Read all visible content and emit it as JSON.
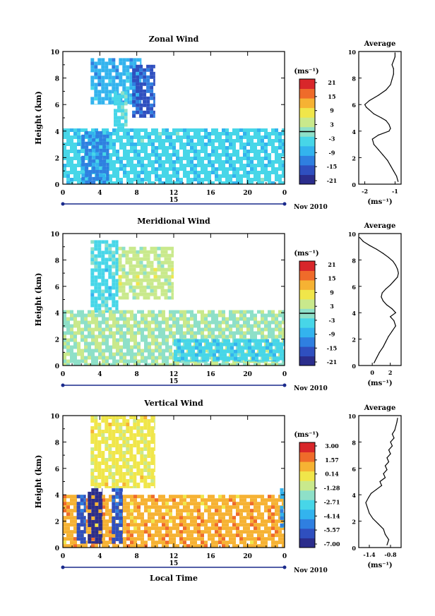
{
  "xaxis": {
    "ticks": [
      "0",
      "4",
      "8",
      "12",
      "16",
      "20",
      "0"
    ],
    "date_day": "15",
    "date_month_year": "Nov 2010",
    "xlabel": "Local Time"
  },
  "panels": [
    {
      "title": "Zonal Wind",
      "ylabel": "Height (km)",
      "yticks": [
        "0",
        "2",
        "4",
        "6",
        "8",
        "10"
      ],
      "colorbar": {
        "unit": "(ms⁻¹)",
        "labels": [
          "21",
          "15",
          "9",
          "3",
          "-3",
          "-9",
          "-15",
          "-21"
        ]
      },
      "avg_title": "Average",
      "avg_unit": "(ms⁻¹)"
    },
    {
      "title": "Meridional Wind",
      "ylabel": "Height (km)",
      "yticks": [
        "0",
        "2",
        "4",
        "6",
        "8",
        "10"
      ],
      "colorbar": {
        "unit": "(ms⁻¹)",
        "labels": [
          "21",
          "15",
          "9",
          "3",
          "-3",
          "-9",
          "-15",
          "-21"
        ]
      },
      "avg_title": "Average",
      "avg_unit": "(ms⁻¹)"
    },
    {
      "title": "Vertical Wind",
      "ylabel": "Height (km)",
      "yticks": [
        "0",
        "2",
        "4",
        "6",
        "8",
        "10"
      ],
      "colorbar": {
        "unit": "(ms⁻¹)",
        "labels": [
          "3.00",
          "1.57",
          "0.14",
          "-1.28",
          "-2.71",
          "-4.14",
          "-5.57",
          "-7.00"
        ]
      },
      "avg_title": "Average",
      "avg_unit": "(ms⁻¹)"
    }
  ],
  "chart_data": [
    {
      "type": "heatmap",
      "title": "Zonal Wind",
      "xlabel": "Local Time",
      "ylabel": "Height (km)",
      "xlim": [
        0,
        24
      ],
      "ylim": [
        0,
        10
      ],
      "zlim": [
        -24,
        24
      ],
      "zero_contour": true,
      "regions": [
        {
          "t": [
            3.0,
            8.5
          ],
          "h": [
            6.0,
            9.5
          ],
          "value": -9
        },
        {
          "t": [
            7.5,
            10.0
          ],
          "h": [
            5.0,
            9.0
          ],
          "value": -16
        },
        {
          "t": [
            5.5,
            7.0
          ],
          "h": [
            4.2,
            7.0
          ],
          "value": -3
        },
        {
          "t": [
            0.0,
            24.0
          ],
          "h": [
            0.0,
            4.2
          ],
          "value": -5
        },
        {
          "t": [
            2.0,
            5.0
          ],
          "h": [
            0.0,
            4.0
          ],
          "value": -12
        }
      ]
    },
    {
      "type": "line",
      "title": "Average",
      "xlabel": "(ms⁻¹)",
      "xticks": [
        "-2",
        "-1"
      ],
      "xlim": [
        -2.2,
        -0.8
      ],
      "ylim": [
        0,
        10
      ],
      "x": [
        -0.9,
        -0.95,
        -1.05,
        -1.15,
        -1.25,
        -1.4,
        -1.55,
        -1.7,
        -1.75,
        -1.55,
        -1.2,
        -1.15,
        -1.2,
        -1.3,
        -1.45,
        -1.7,
        -1.85,
        -1.95,
        -2.0,
        -1.85,
        -1.55,
        -1.3,
        -1.15,
        -1.1,
        -1.05,
        -1.05,
        -1.1,
        -1.05,
        -1.0,
        -1.0
      ],
      "y": [
        0.2,
        0.6,
        1.0,
        1.4,
        1.8,
        2.2,
        2.6,
        3.0,
        3.4,
        3.7,
        4.0,
        4.2,
        4.5,
        4.8,
        5.0,
        5.3,
        5.6,
        5.8,
        6.0,
        6.3,
        6.7,
        7.1,
        7.5,
        7.9,
        8.3,
        8.7,
        9.0,
        9.3,
        9.6,
        9.9
      ]
    },
    {
      "type": "heatmap",
      "title": "Meridional Wind",
      "xlabel": "Local Time",
      "ylabel": "Height (km)",
      "xlim": [
        0,
        24
      ],
      "ylim": [
        0,
        10
      ],
      "zlim": [
        -24,
        24
      ],
      "zero_contour": true,
      "regions": [
        {
          "t": [
            6.0,
            12.0
          ],
          "h": [
            5.0,
            9.0
          ],
          "value": 4
        },
        {
          "t": [
            3.0,
            6.0
          ],
          "h": [
            4.0,
            9.5
          ],
          "value": -4
        },
        {
          "t": [
            0.0,
            24.0
          ],
          "h": [
            0.0,
            4.2
          ],
          "value": 2
        },
        {
          "t": [
            12.0,
            24.0
          ],
          "h": [
            0.3,
            2.0
          ],
          "value": -5
        }
      ]
    },
    {
      "type": "line",
      "title": "Average",
      "xlabel": "(ms⁻¹)",
      "xticks": [
        "0",
        "2"
      ],
      "xlim": [
        -1.5,
        3.2
      ],
      "ylim": [
        0,
        10
      ],
      "x": [
        0.2,
        0.5,
        0.8,
        1.2,
        1.5,
        1.8,
        2.2,
        2.6,
        2.4,
        2.0,
        2.6,
        2.2,
        1.6,
        1.2,
        1.0,
        1.1,
        1.5,
        2.0,
        2.4,
        2.8,
        2.9,
        2.8,
        2.6,
        2.3,
        1.8,
        1.2,
        0.5,
        -0.3,
        -1.0,
        -1.4
      ],
      "y": [
        0.2,
        0.6,
        1.0,
        1.4,
        1.8,
        2.2,
        2.6,
        3.0,
        3.4,
        3.7,
        4.0,
        4.3,
        4.6,
        4.9,
        5.2,
        5.5,
        5.8,
        6.1,
        6.4,
        6.7,
        7.0,
        7.3,
        7.6,
        7.9,
        8.2,
        8.5,
        8.8,
        9.1,
        9.4,
        9.7
      ]
    },
    {
      "type": "heatmap",
      "title": "Vertical Wind",
      "xlabel": "Local Time",
      "ylabel": "Height (km)",
      "xlim": [
        0,
        24
      ],
      "ylim": [
        0,
        10
      ],
      "zlim": [
        -7.0,
        3.0
      ],
      "regions": [
        {
          "t": [
            3.0,
            10.0
          ],
          "h": [
            4.5,
            10.0
          ],
          "value": -0.3
        },
        {
          "t": [
            0.0,
            24.0
          ],
          "h": [
            0.0,
            4.0
          ],
          "value": 0.8
        },
        {
          "t": [
            1.5,
            2.5
          ],
          "h": [
            0.3,
            4.0
          ],
          "value": -5.5
        },
        {
          "t": [
            2.7,
            4.3
          ],
          "h": [
            0.3,
            4.5
          ],
          "value": -7.0
        },
        {
          "t": [
            5.3,
            6.5
          ],
          "h": [
            0.3,
            4.5
          ],
          "value": -5.5
        },
        {
          "t": [
            23.5,
            24.0
          ],
          "h": [
            1.5,
            4.5
          ],
          "value": -4.0
        }
      ]
    },
    {
      "type": "line",
      "title": "Average",
      "xlabel": "(ms⁻¹)",
      "xticks": [
        "-1.4",
        "-0.8"
      ],
      "xlim": [
        -1.7,
        -0.5
      ],
      "ylim": [
        0,
        10
      ],
      "x": [
        -0.9,
        -0.85,
        -0.95,
        -1.0,
        -1.15,
        -1.3,
        -1.4,
        -1.45,
        -1.5,
        -1.42,
        -1.35,
        -1.2,
        -1.05,
        -1.1,
        -0.95,
        -1.0,
        -0.9,
        -0.95,
        -0.85,
        -0.9,
        -0.8,
        -0.85,
        -0.75,
        -0.8,
        -0.7,
        -0.75,
        -0.68,
        -0.65,
        -0.62,
        -0.6
      ],
      "y": [
        0.2,
        0.6,
        1.0,
        1.4,
        1.8,
        2.2,
        2.6,
        3.0,
        3.4,
        3.8,
        4.1,
        4.4,
        4.7,
        5.0,
        5.3,
        5.6,
        5.9,
        6.2,
        6.5,
        6.8,
        7.1,
        7.4,
        7.7,
        8.0,
        8.3,
        8.6,
        8.9,
        9.2,
        9.5,
        9.8
      ]
    }
  ]
}
